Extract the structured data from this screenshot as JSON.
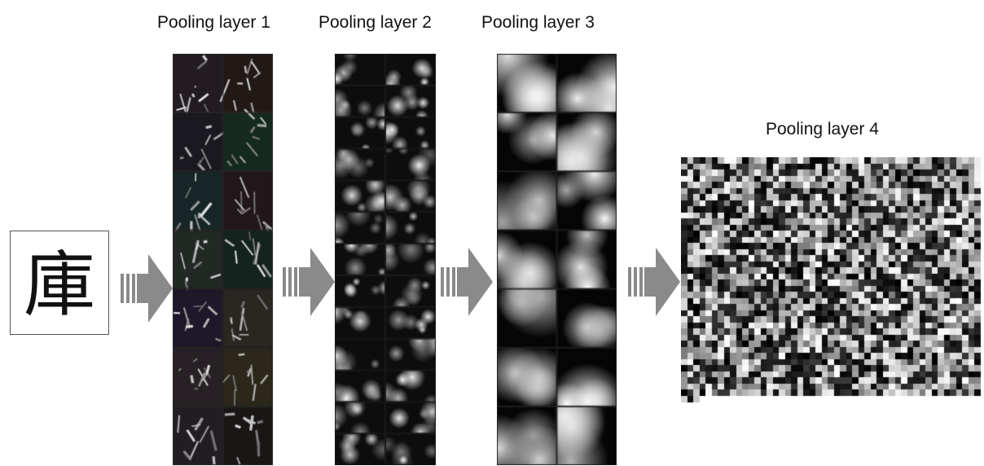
{
  "labels": {
    "pool1": "Pooling layer 1",
    "pool2": "Pooling layer 2",
    "pool3": "Pooling layer 3",
    "pool4": "Pooling layer 4"
  },
  "input_glyph": "庫",
  "arrow_color": "#8a8a8a"
}
